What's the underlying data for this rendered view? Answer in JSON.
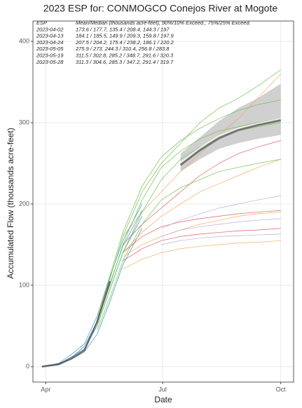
{
  "chart_data": {
    "type": "line",
    "title": "2023 ESP for:  CONMOGCO   Conejos River at Mogote",
    "x_label": "Date",
    "y_label": "Accumulated Flow (thousands acre-feet)",
    "xlim": [
      -10,
      193
    ],
    "ylim": [
      -19,
      425
    ],
    "xticks": [
      {
        "value": 0,
        "label": "Apr"
      },
      {
        "value": 91,
        "label": "Jul"
      },
      {
        "value": 183,
        "label": "Oct"
      }
    ],
    "yticks": [
      0,
      100,
      200,
      300,
      400
    ],
    "grid": true,
    "table": {
      "header": [
        "ESP",
        "Mean/Median (thousands acre-feet), 90%/10% Exceed., 75%/25% Exceed."
      ],
      "rows": [
        [
          "2023-04-02",
          "173.6 / 177.7,  135.4 / 208.4,  144.3 / 197"
        ],
        [
          "2023-04-13",
          "184.1 / 185.5,  149.9 / 209.3,  159.8 / 197.9"
        ],
        [
          "2023-04-24",
          "207.5 / 204.2,  175.4 / 238.2,  186.1 / 220.2"
        ],
        [
          "2023-05-05",
          "275.9 / 273.  244.3 / 310.4,  256.8 / 283.8"
        ],
        [
          "2023-05-19",
          "311.5 / 302.8,  285.2 / 348.7,  291.6 / 320.3"
        ],
        [
          "2023-05-28",
          "311.3 / 304.6,  285.3 / 347.2,  291.4 / 319.7"
        ]
      ]
    },
    "x": [
      -3,
      10,
      20,
      30,
      40,
      50,
      60,
      75,
      90,
      105,
      120,
      135,
      150,
      165,
      183
    ],
    "bands": [
      {
        "color": "#c4c4c4",
        "lower": [
          null,
          null,
          null,
          null,
          null,
          null,
          null,
          null,
          null,
          240,
          255,
          268,
          275,
          280,
          285
        ],
        "upper": [
          null,
          null,
          null,
          null,
          null,
          null,
          null,
          null,
          null,
          262,
          282,
          302,
          318,
          330,
          348
        ]
      }
    ],
    "series": [
      {
        "color": "#3a8fc7",
        "width": 0.8,
        "values": [
          0,
          3,
          12,
          22,
          50,
          95,
          140,
          185,
          null,
          null,
          null,
          null,
          null,
          null,
          null
        ]
      },
      {
        "color": "#3a8fc7",
        "width": 0.8,
        "values": [
          0,
          4,
          15,
          28,
          62,
          110,
          155,
          200,
          null,
          null,
          null,
          null,
          null,
          null,
          null
        ]
      },
      {
        "color": "#3a8fc7",
        "width": 0.8,
        "values": [
          0,
          2,
          9,
          18,
          40,
          80,
          125,
          170,
          null,
          null,
          null,
          null,
          null,
          null,
          null
        ]
      },
      {
        "color": "#3a8fc7",
        "width": 0.8,
        "values": [
          0,
          3,
          11,
          25,
          55,
          102,
          148,
          192,
          null,
          null,
          null,
          null,
          null,
          null,
          null
        ]
      },
      {
        "color": "#d9424b",
        "width": 0.7,
        "values": [
          null,
          null,
          null,
          null,
          null,
          null,
          140,
          160,
          172,
          178,
          182,
          185,
          188,
          190,
          192
        ]
      },
      {
        "color": "#d9424b",
        "width": 0.7,
        "values": [
          null,
          null,
          null,
          null,
          null,
          null,
          150,
          175,
          195,
          215,
          235,
          250,
          262,
          270,
          278
        ]
      },
      {
        "color": "#d9424b",
        "width": 0.7,
        "values": [
          null,
          null,
          null,
          null,
          null,
          null,
          130,
          145,
          155,
          160,
          163,
          165,
          167,
          168,
          170
        ]
      },
      {
        "color": "#f0a04b",
        "width": 0.7,
        "values": [
          null,
          null,
          null,
          null,
          null,
          null,
          135,
          150,
          160,
          168,
          175,
          180,
          185,
          188,
          190
        ]
      },
      {
        "color": "#f0a04b",
        "width": 0.7,
        "values": [
          null,
          null,
          null,
          null,
          null,
          null,
          160,
          190,
          215,
          240,
          262,
          285,
          305,
          330,
          360
        ]
      },
      {
        "color": "#f0a04b",
        "width": 0.7,
        "values": [
          null,
          null,
          null,
          null,
          null,
          null,
          140,
          165,
          185,
          200,
          215,
          225,
          235,
          245,
          255
        ]
      },
      {
        "color": "#f0a04b",
        "width": 0.7,
        "values": [
          null,
          null,
          null,
          null,
          null,
          null,
          120,
          132,
          140,
          145,
          148,
          150,
          152,
          153,
          155
        ]
      },
      {
        "color": "#b39ddb",
        "width": 0.7,
        "values": [
          null,
          null,
          null,
          null,
          null,
          null,
          null,
          null,
          160,
          168,
          172,
          175,
          178,
          180,
          182
        ]
      },
      {
        "color": "#b39ddb",
        "width": 0.7,
        "values": [
          null,
          null,
          null,
          null,
          null,
          null,
          null,
          null,
          170,
          180,
          188,
          195,
          200,
          205,
          210
        ]
      },
      {
        "color": "#b39ddb",
        "width": 0.7,
        "values": [
          null,
          null,
          null,
          null,
          null,
          null,
          null,
          null,
          150,
          155,
          158,
          160,
          161,
          162,
          163
        ]
      },
      {
        "color": "#6cbf4a",
        "width": 0.8,
        "values": [
          null,
          null,
          null,
          null,
          55,
          100,
          150,
          205,
          245,
          265,
          280,
          290,
          295,
          300,
          305
        ]
      },
      {
        "color": "#6cbf4a",
        "width": 0.8,
        "values": [
          null,
          null,
          null,
          null,
          62,
          112,
          165,
          222,
          258,
          278,
          293,
          305,
          315,
          322,
          328
        ]
      },
      {
        "color": "#6cbf4a",
        "width": 0.8,
        "values": [
          null,
          null,
          null,
          null,
          45,
          85,
          130,
          175,
          205,
          220,
          230,
          240,
          245,
          250,
          255
        ]
      },
      {
        "color": "#6cbf4a",
        "width": 0.8,
        "values": [
          null,
          null,
          null,
          null,
          50,
          95,
          140,
          190,
          230,
          255,
          270,
          280,
          290,
          295,
          300
        ]
      },
      {
        "color": "#6cbf4a",
        "width": 0.8,
        "values": [
          null,
          null,
          null,
          null,
          58,
          108,
          160,
          215,
          250,
          275,
          300,
          318,
          330,
          345,
          365
        ]
      },
      {
        "color": "#666666",
        "width": 3,
        "values": [
          null,
          null,
          null,
          null,
          null,
          null,
          null,
          null,
          null,
          248,
          266,
          281,
          291,
          297,
          303
        ]
      },
      {
        "color": "#ffffff",
        "width": 1.5,
        "values": [
          null,
          null,
          null,
          null,
          null,
          null,
          null,
          null,
          null,
          251,
          269,
          284,
          293,
          299,
          305
        ]
      },
      {
        "color": "#555555",
        "width": 2.5,
        "values": [
          0,
          3,
          10,
          20,
          55,
          105,
          null,
          null,
          null,
          null,
          null,
          null,
          null,
          null,
          null
        ]
      }
    ]
  }
}
